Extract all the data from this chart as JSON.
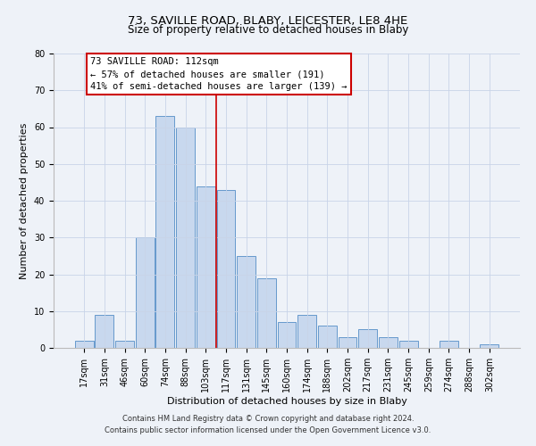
{
  "title": "73, SAVILLE ROAD, BLABY, LEICESTER, LE8 4HE",
  "subtitle": "Size of property relative to detached houses in Blaby",
  "xlabel": "Distribution of detached houses by size in Blaby",
  "ylabel": "Number of detached properties",
  "bar_labels": [
    "17sqm",
    "31sqm",
    "46sqm",
    "60sqm",
    "74sqm",
    "88sqm",
    "103sqm",
    "117sqm",
    "131sqm",
    "145sqm",
    "160sqm",
    "174sqm",
    "188sqm",
    "202sqm",
    "217sqm",
    "231sqm",
    "245sqm",
    "259sqm",
    "274sqm",
    "288sqm",
    "302sqm"
  ],
  "bar_values": [
    2,
    9,
    2,
    30,
    63,
    60,
    44,
    43,
    25,
    19,
    7,
    9,
    6,
    3,
    5,
    3,
    2,
    0,
    2,
    0,
    1
  ],
  "bar_color": "#c8d8ee",
  "bar_edge_color": "#6699cc",
  "vline_pos": 6.5,
  "vline_color": "#cc0000",
  "annotation_title": "73 SAVILLE ROAD: 112sqm",
  "annotation_line1": "← 57% of detached houses are smaller (191)",
  "annotation_line2": "41% of semi-detached houses are larger (139) →",
  "annotation_box_facecolor": "#ffffff",
  "annotation_box_edgecolor": "#cc0000",
  "ylim": [
    0,
    80
  ],
  "yticks": [
    0,
    10,
    20,
    30,
    40,
    50,
    60,
    70,
    80
  ],
  "footer1": "Contains HM Land Registry data © Crown copyright and database right 2024.",
  "footer2": "Contains public sector information licensed under the Open Government Licence v3.0.",
  "grid_color": "#c8d4e8",
  "bg_color": "#eef2f8",
  "title_fontsize": 9.5,
  "subtitle_fontsize": 8.5,
  "axis_label_fontsize": 8,
  "tick_fontsize": 7,
  "annotation_fontsize": 7.5,
  "footer_fontsize": 6
}
